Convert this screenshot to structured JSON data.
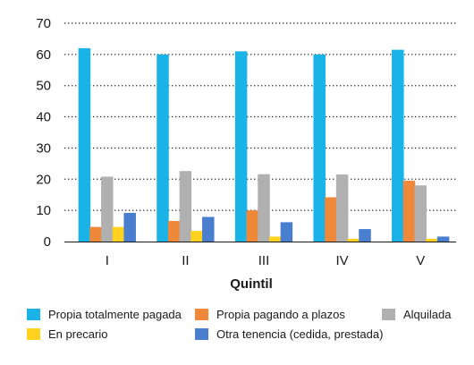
{
  "chart_data": {
    "type": "bar",
    "title": "",
    "xlabel": "Quintil",
    "ylabel": "",
    "categories": [
      "I",
      "II",
      "III",
      "IV",
      "V"
    ],
    "yticks": [
      "0",
      "10",
      "20",
      "30",
      "40",
      "50",
      "60",
      "70"
    ],
    "ylim": [
      0,
      70
    ],
    "grid": "horizontal dotted",
    "legend_position": "bottom",
    "series": [
      {
        "name": "Propia totalmente pagada",
        "color": "#1ab3e8",
        "values": [
          62,
          60,
          61,
          60,
          61.5
        ]
      },
      {
        "name": "Propia pagando a plazos",
        "color": "#f0883a",
        "values": [
          4.7,
          6.6,
          10,
          14.2,
          19.5
        ]
      },
      {
        "name": "Alquilada",
        "color": "#b0b0b0",
        "values": [
          20.8,
          22.6,
          21.6,
          21.5,
          18
        ]
      },
      {
        "name": "En precario",
        "color": "#ffd21f",
        "values": [
          4.7,
          3.4,
          1.6,
          0.9,
          0.9
        ]
      },
      {
        "name": "Otra tenencia (cedida, prestada)",
        "color": "#4a7fcf",
        "values": [
          9.2,
          7.9,
          6.2,
          4,
          1.6
        ]
      }
    ]
  }
}
